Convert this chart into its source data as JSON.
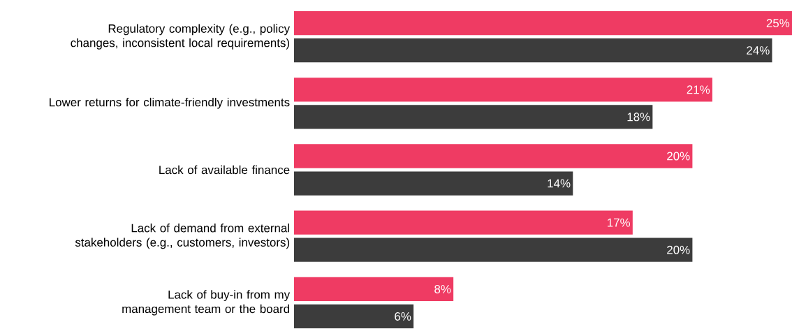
{
  "chart_data": {
    "type": "bar",
    "orientation": "horizontal",
    "categories": [
      "Regulatory complexity (e.g., policy changes, inconsistent local requirements)",
      "Lower returns for climate-friendly investments",
      "Lack of available finance",
      "Lack of demand from external stakeholders (e.g., customers, investors)",
      "Lack of buy-in from my management team or the board"
    ],
    "series": [
      {
        "color": "#ef3b63",
        "values": [
          25,
          21,
          20,
          17,
          8
        ],
        "value_labels": [
          "25%",
          "21%",
          "20%",
          "17%",
          "8%"
        ]
      },
      {
        "color": "#3c3c3c",
        "values": [
          24,
          18,
          14,
          20,
          6
        ],
        "value_labels": [
          "24%",
          "18%",
          "14%",
          "20%",
          "6%"
        ]
      }
    ]
  }
}
